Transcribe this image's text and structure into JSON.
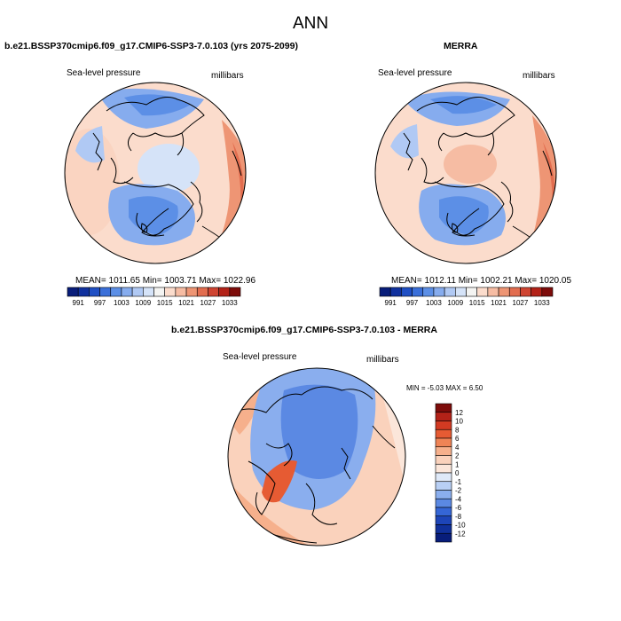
{
  "figure": {
    "title": "ANN"
  },
  "panels": [
    {
      "title": "b.e21.BSSP370cmip6.f09_g17.CMIP6-SSP3-7.0.103 (yrs 2075-2099)",
      "variable": "Sea-level pressure",
      "units": "millibars",
      "stats": "MEAN= 1011.65  Min= 1003.71  Max= 1022.96",
      "colorbar": {
        "levels": [
          "991",
          "997",
          "1003",
          "1009",
          "1015",
          "1021",
          "1027",
          "1033"
        ],
        "colors": [
          "#081d7a",
          "#10319e",
          "#1f4fc4",
          "#3a6fd9",
          "#5c8fe6",
          "#86acee",
          "#b0c9f4",
          "#d5e3f8",
          "#f4f4f2",
          "#fbdccc",
          "#f6bca3",
          "#ee9574",
          "#e26d4f",
          "#cf4431",
          "#b32218",
          "#7d0c0a"
        ]
      }
    },
    {
      "title": "MERRA",
      "variable": "Sea-level pressure",
      "units": "millibars",
      "stats": "MEAN= 1012.11  Min= 1002.21  Max= 1020.05",
      "colorbar": {
        "levels": [
          "991",
          "997",
          "1003",
          "1009",
          "1015",
          "1021",
          "1027",
          "1033"
        ],
        "colors": [
          "#081d7a",
          "#10319e",
          "#1f4fc4",
          "#3a6fd9",
          "#5c8fe6",
          "#86acee",
          "#b0c9f4",
          "#d5e3f8",
          "#f4f4f2",
          "#fbdccc",
          "#f6bca3",
          "#ee9574",
          "#e26d4f",
          "#cf4431",
          "#b32218",
          "#7d0c0a"
        ]
      }
    },
    {
      "title": "b.e21.BSSP370cmip6.f09_g17.CMIP6-SSP3-7.0.103 - MERRA",
      "variable": "Sea-level pressure",
      "units": "millibars",
      "stats": "MIN =  -5.03 MAX =   6.50",
      "colorbar": {
        "levels": [
          "12",
          "10",
          "8",
          "6",
          "4",
          "2",
          "1",
          "0",
          "-1",
          "-2",
          "-4",
          "-6",
          "-8",
          "-10",
          "-12"
        ],
        "colors": [
          "#7d0c0a",
          "#b32218",
          "#d23a22",
          "#e65b33",
          "#ef8456",
          "#f6b08c",
          "#fad2bc",
          "#fbe6da",
          "#dfe9f8",
          "#b8cff4",
          "#8aaeee",
          "#5b89e3",
          "#3566d6",
          "#1d45b8",
          "#10309a",
          "#081d7a"
        ]
      }
    }
  ]
}
